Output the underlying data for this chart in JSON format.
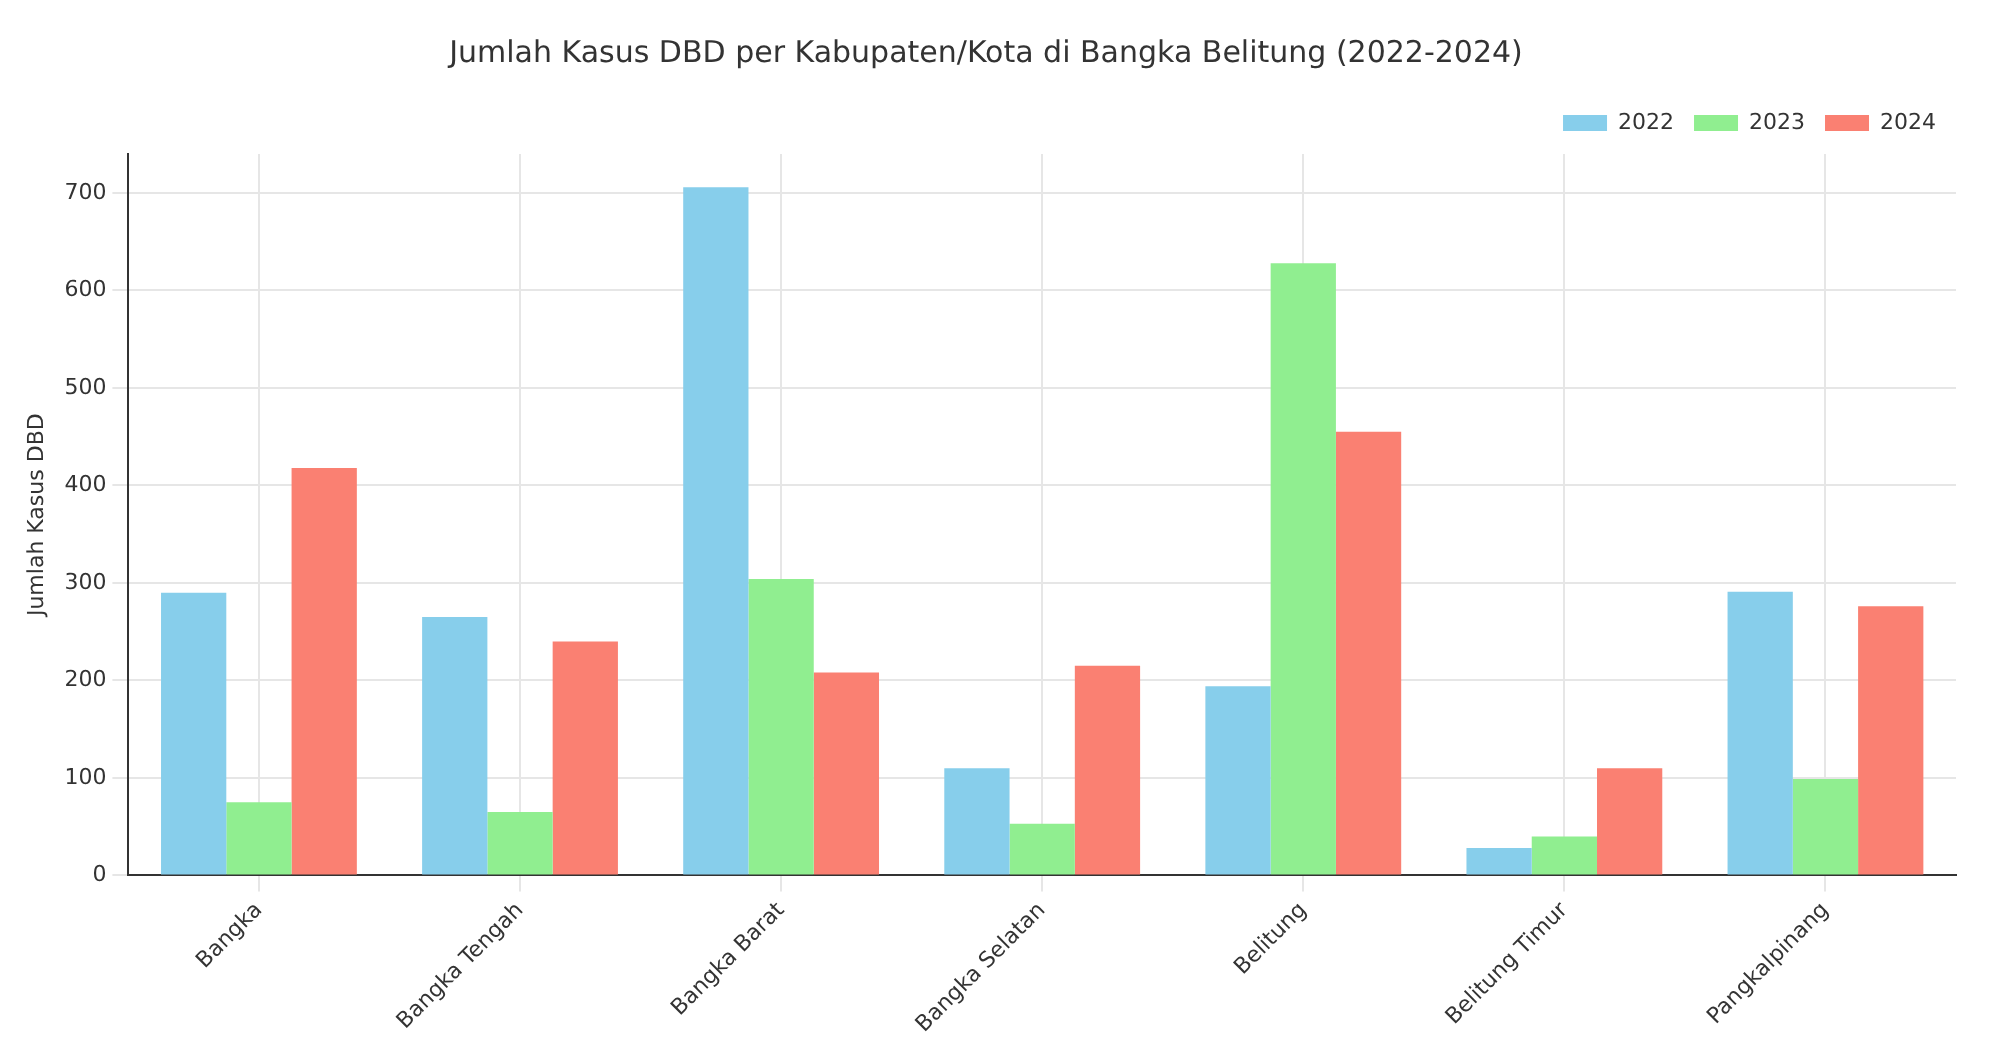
{
  "chart_data": {
    "type": "bar",
    "title": "Jumlah Kasus DBD per Kabupaten/Kota di Bangka Belitung (2022-2024)",
    "ylabel": "Jumlah Kasus DBD",
    "categories": [
      "Bangka",
      "Bangka Tengah",
      "Bangka Barat",
      "Bangka Selatan",
      "Belitung",
      "Belitung Timur",
      "Pangkalpinang"
    ],
    "series": [
      {
        "name": "2022",
        "color": "#87ceeb",
        "values": [
          290,
          265,
          706,
          110,
          194,
          28,
          291
        ]
      },
      {
        "name": "2023",
        "color": "#90ee90",
        "values": [
          75,
          65,
          304,
          53,
          628,
          40,
          99
        ]
      },
      {
        "name": "2024",
        "color": "#fa8072",
        "values": [
          418,
          240,
          208,
          215,
          455,
          110,
          276
        ]
      }
    ],
    "ylim": [
      0,
      740
    ],
    "yticks": [
      0,
      100,
      200,
      300,
      400,
      500,
      600,
      700
    ],
    "grid": true,
    "legend": "top right"
  }
}
